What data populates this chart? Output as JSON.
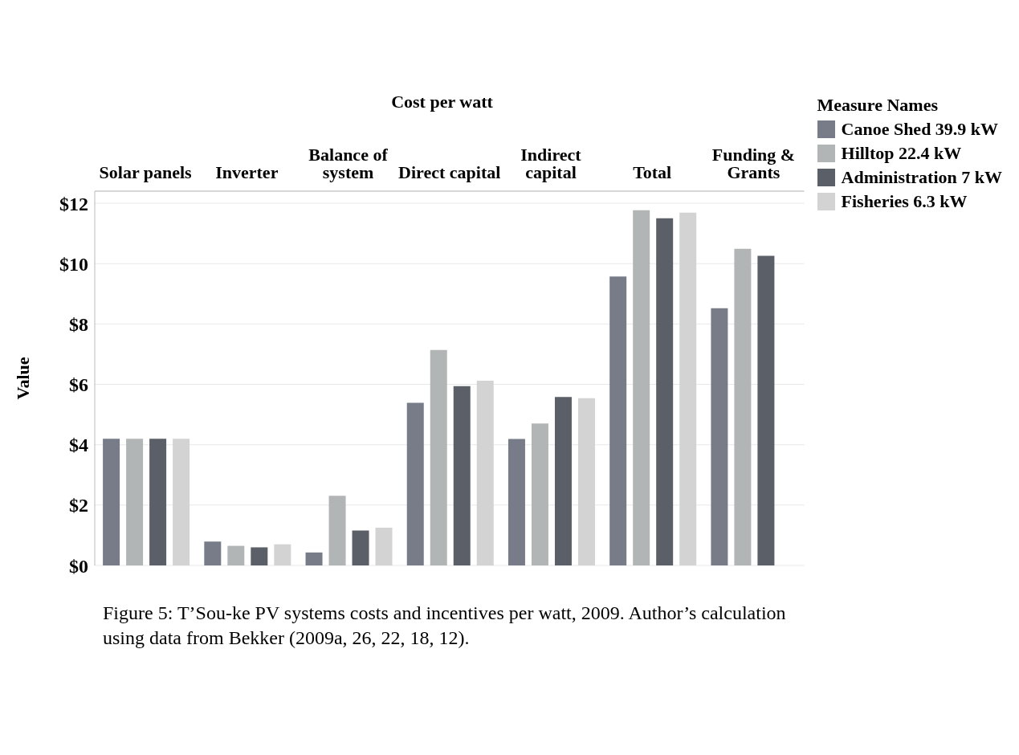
{
  "chart_data": {
    "type": "bar",
    "xlabel": "Cost per watt",
    "ylabel": "Value",
    "legend_title": "Measure Names",
    "categories": [
      "Solar panels",
      "Inverter",
      "Balance of system",
      "Direct capital",
      "Indirect capital",
      "Total",
      "Funding & Grants"
    ],
    "series": [
      {
        "name": "Canoe Shed 39.9 kW",
        "color": "#777c88",
        "values": [
          4.2,
          0.79,
          0.43,
          5.39,
          4.19,
          9.57,
          8.52
        ]
      },
      {
        "name": "Hilltop 22.4 kW",
        "color": "#b2b5b6",
        "values": [
          4.2,
          0.65,
          2.31,
          7.14,
          4.7,
          11.77,
          10.49
        ]
      },
      {
        "name": "Administration 7 kW",
        "color": "#5b5f67",
        "values": [
          4.2,
          0.6,
          1.16,
          5.94,
          5.58,
          11.5,
          10.26
        ]
      },
      {
        "name": "Fisheries 6.3 kW",
        "color": "#d3d3d3",
        "values": [
          4.2,
          0.7,
          1.25,
          6.12,
          5.54,
          11.69,
          null
        ]
      }
    ],
    "ylim": [
      0,
      12.4
    ],
    "yticks": [
      {
        "value": 0,
        "label": "$0"
      },
      {
        "value": 2,
        "label": "$2"
      },
      {
        "value": 4,
        "label": "$4"
      },
      {
        "value": 6,
        "label": "$6"
      },
      {
        "value": 8,
        "label": "$8"
      },
      {
        "value": 10,
        "label": "$10"
      },
      {
        "value": 12,
        "label": "$12"
      }
    ],
    "grid": "y",
    "legend": "top right",
    "annotations": [
      "Figure 5: T’Sou-ke PV systems costs and incentives per watt, 2009. Author’s calculation using data from Bekker (2009a, 26, 22, 18, 12)."
    ]
  }
}
